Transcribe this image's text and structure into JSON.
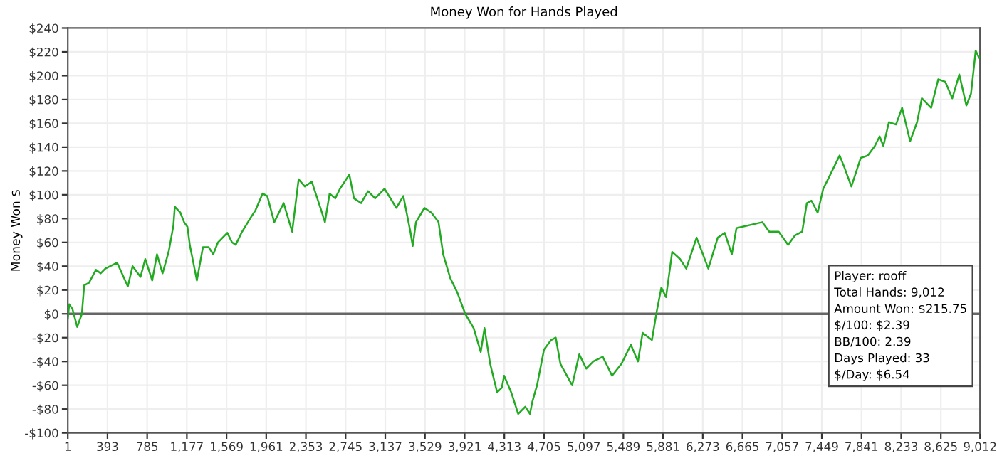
{
  "chart_data": {
    "type": "line",
    "title": "Money Won for Hands Played",
    "ylabel": "Money Won $",
    "x": [
      1,
      15,
      47,
      94,
      140,
      163,
      210,
      279,
      325,
      372,
      488,
      594,
      641,
      719,
      766,
      835,
      882,
      937,
      997,
      1044,
      1058,
      1113,
      1150,
      1183,
      1206,
      1276,
      1336,
      1392,
      1438,
      1484,
      1577,
      1623,
      1660,
      1716,
      1809,
      1855,
      1925,
      1971,
      2040,
      2133,
      2217,
      2281,
      2342,
      2411,
      2504,
      2541,
      2587,
      2643,
      2689,
      2782,
      2828,
      2898,
      2967,
      3037,
      3130,
      3246,
      3315,
      3385,
      3408,
      3440,
      3524,
      3593,
      3663,
      3709,
      3779,
      3848,
      3927,
      4010,
      4080,
      4117,
      4173,
      4242,
      4288,
      4311,
      4381,
      4450,
      4520,
      4566,
      4589,
      4636,
      4705,
      4775,
      4821,
      4867,
      4983,
      5053,
      5122,
      5192,
      5285,
      5377,
      5470,
      5563,
      5633,
      5679,
      5771,
      5818,
      5864,
      5910,
      5971,
      6049,
      6110,
      6212,
      6328,
      6421,
      6490,
      6560,
      6606,
      6861,
      6930,
      7023,
      7116,
      7185,
      7255,
      7301,
      7347,
      7408,
      7463,
      7533,
      7625,
      7672,
      7741,
      7834,
      7904,
      7973,
      8020,
      8057,
      8112,
      8182,
      8242,
      8321,
      8390,
      8437,
      8529,
      8599,
      8668,
      8738,
      8807,
      8877,
      8923,
      8969,
      9002,
      9012
    ],
    "series": [
      {
        "color": "#22aa22",
        "values": [
          -4,
          8,
          4,
          -11,
          0,
          24,
          26,
          37,
          34,
          38,
          43,
          23,
          40,
          31,
          46,
          28,
          50,
          34,
          52,
          74,
          90,
          85,
          77,
          73,
          58,
          28,
          56,
          56,
          50,
          60,
          68,
          60,
          58,
          68,
          81,
          87,
          101,
          99,
          77,
          93,
          69,
          113,
          107,
          111,
          87,
          77,
          101,
          97,
          105,
          117,
          97,
          93,
          103,
          97,
          105,
          89,
          99,
          69,
          57,
          77,
          89,
          85,
          77,
          50,
          30,
          18,
          0,
          -12,
          -32,
          -12,
          -42,
          -66,
          -62,
          -52,
          -66,
          -84,
          -78,
          -84,
          -74,
          -60,
          -30,
          -22,
          -20,
          -42,
          -60,
          -34,
          -46,
          -40,
          -36,
          -52,
          -42,
          -26,
          -40,
          -16,
          -22,
          2,
          22,
          14,
          52,
          46,
          38,
          64,
          38,
          64,
          68,
          50,
          72,
          77,
          69,
          69,
          58,
          66,
          69,
          93,
          95,
          85,
          105,
          117,
          133,
          123,
          107,
          131,
          133,
          141,
          149,
          141,
          161,
          159,
          173,
          145,
          161,
          181,
          173,
          197,
          195,
          181,
          201,
          175,
          185,
          221,
          215,
          216
        ]
      }
    ],
    "xlim": [
      1,
      9012
    ],
    "ylim": [
      -100,
      240
    ],
    "xticks": [
      1,
      {
        "value": 393,
        "label": "393"
      },
      {
        "value": 785,
        "label": "785"
      },
      {
        "value": 1177,
        "label": "1,177"
      },
      {
        "value": 1569,
        "label": "1,569"
      },
      {
        "value": 1961,
        "label": "1,961"
      },
      {
        "value": 2353,
        "label": "2,353"
      },
      {
        "value": 2745,
        "label": "2,745"
      },
      {
        "value": 3137,
        "label": "3,137"
      },
      {
        "value": 3529,
        "label": "3,529"
      },
      {
        "value": 3921,
        "label": "3,921"
      },
      {
        "value": 4313,
        "label": "4,313"
      },
      {
        "value": 4705,
        "label": "4,705"
      },
      {
        "value": 5097,
        "label": "5,097"
      },
      {
        "value": 5489,
        "label": "5,489"
      },
      {
        "value": 5881,
        "label": "5,881"
      },
      {
        "value": 6273,
        "label": "6,273"
      },
      {
        "value": 6665,
        "label": "6,665"
      },
      {
        "value": 7057,
        "label": "7,057"
      },
      {
        "value": 7449,
        "label": "7,449"
      },
      {
        "value": 7841,
        "label": "7,841"
      },
      {
        "value": 8233,
        "label": "8,233"
      },
      {
        "value": 8625,
        "label": "8,625"
      },
      {
        "value": 9012,
        "label": "9,012"
      }
    ],
    "yticks": [
      {
        "value": -100,
        "label": "-$100"
      },
      {
        "value": -80,
        "label": "-$80"
      },
      {
        "value": -60,
        "label": "-$60"
      },
      {
        "value": -40,
        "label": "-$40"
      },
      {
        "value": -20,
        "label": "-$20"
      },
      {
        "value": 0,
        "label": "$0"
      },
      {
        "value": 20,
        "label": "$20"
      },
      {
        "value": 40,
        "label": "$40"
      },
      {
        "value": 60,
        "label": "$60"
      },
      {
        "value": 80,
        "label": "$80"
      },
      {
        "value": 100,
        "label": "$100"
      },
      {
        "value": 120,
        "label": "$120"
      },
      {
        "value": 140,
        "label": "$140"
      },
      {
        "value": 160,
        "label": "$160"
      },
      {
        "value": 180,
        "label": "$180"
      },
      {
        "value": 200,
        "label": "$200"
      },
      {
        "value": 220,
        "label": "$220"
      },
      {
        "value": 240,
        "label": "$240"
      }
    ],
    "grid": true,
    "ref_lines": [
      {
        "axis": "y",
        "value": 0,
        "color": "#666666"
      }
    ],
    "annotations": [
      "Player: rooff",
      "Total Hands: 9,012",
      "Amount Won: $215.75",
      "$/100: $2.39",
      "BB/100: 2.39",
      "Days Played: 33",
      "$/Day: $6.54"
    ]
  }
}
